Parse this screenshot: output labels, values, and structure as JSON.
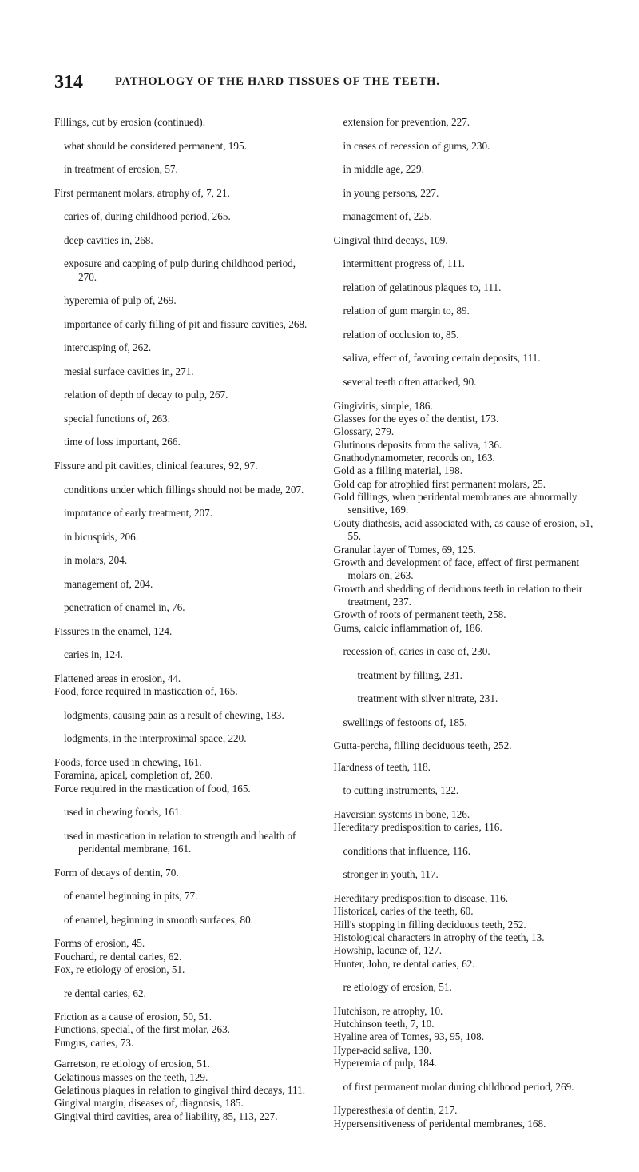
{
  "header": {
    "page_number": "314",
    "running_title": "PATHOLOGY OF THE HARD TISSUES OF THE TEETH."
  },
  "entries": [
    {
      "t": "Fillings, cut by erosion (continued).",
      "c": "entry"
    },
    {
      "t": "what should be considered permanent, 195.",
      "c": "sub1"
    },
    {
      "t": "in treatment of erosion, 57.",
      "c": "sub1"
    },
    {
      "t": "First permanent molars, atrophy of, 7, 21.",
      "c": "entry"
    },
    {
      "t": "caries of, during childhood period, 265.",
      "c": "sub1"
    },
    {
      "t": "deep cavities in, 268.",
      "c": "sub1"
    },
    {
      "t": "exposure and capping of pulp during childhood period, 270.",
      "c": "sub1"
    },
    {
      "t": "hyperemia of pulp of, 269.",
      "c": "sub1"
    },
    {
      "t": "importance of early filling of pit and fissure cavities, 268.",
      "c": "sub1"
    },
    {
      "t": "intercusping of, 262.",
      "c": "sub1"
    },
    {
      "t": "mesial surface cavities in, 271.",
      "c": "sub1"
    },
    {
      "t": "relation of depth of decay to pulp, 267.",
      "c": "sub1"
    },
    {
      "t": "special functions of, 263.",
      "c": "sub1"
    },
    {
      "t": "time of loss important, 266.",
      "c": "sub1"
    },
    {
      "t": "Fissure and pit cavities, clinical features, 92, 97.",
      "c": "entry"
    },
    {
      "t": "conditions under which fillings should not be made, 207.",
      "c": "sub1"
    },
    {
      "t": "importance of early treatment, 207.",
      "c": "sub1"
    },
    {
      "t": "in bicuspids, 206.",
      "c": "sub1"
    },
    {
      "t": "in molars, 204.",
      "c": "sub1"
    },
    {
      "t": "management of, 204.",
      "c": "sub1"
    },
    {
      "t": "penetration of enamel in, 76.",
      "c": "sub1"
    },
    {
      "t": "Fissures in the enamel, 124.",
      "c": "entry"
    },
    {
      "t": "caries in, 124.",
      "c": "sub1"
    },
    {
      "t": "Flattened areas in erosion, 44.",
      "c": "entry"
    },
    {
      "t": "Food, force required in mastication of, 165.",
      "c": "entry"
    },
    {
      "t": "lodgments, causing pain as a result of chewing, 183.",
      "c": "sub1"
    },
    {
      "t": "lodgments, in the interproximal space, 220.",
      "c": "sub1"
    },
    {
      "t": "Foods, force used in chewing, 161.",
      "c": "entry"
    },
    {
      "t": "Foramina, apical, completion of, 260.",
      "c": "entry"
    },
    {
      "t": "Force required in the mastication of food, 165.",
      "c": "entry"
    },
    {
      "t": "used in chewing foods, 161.",
      "c": "sub1"
    },
    {
      "t": "used in mastication in relation to strength and health of peridental membrane, 161.",
      "c": "sub1"
    },
    {
      "t": "Form of decays of dentin, 70.",
      "c": "entry"
    },
    {
      "t": "of enamel beginning in pits, 77.",
      "c": "sub1"
    },
    {
      "t": "of enamel, beginning in smooth surfaces, 80.",
      "c": "sub1"
    },
    {
      "t": "Forms of erosion, 45.",
      "c": "entry"
    },
    {
      "t": "Fouchard, re dental caries, 62.",
      "c": "entry"
    },
    {
      "t": "Fox, re etiology of erosion, 51.",
      "c": "entry"
    },
    {
      "t": "re dental caries, 62.",
      "c": "sub1"
    },
    {
      "t": "Friction as a cause of erosion, 50, 51.",
      "c": "entry"
    },
    {
      "t": "Functions, special, of the first molar, 263.",
      "c": "entry"
    },
    {
      "t": "Fungus, caries, 73.",
      "c": "entry"
    },
    {
      "t": "Garretson, re etiology of erosion, 51.",
      "c": "entry gap-top"
    },
    {
      "t": "Gelatinous masses on the teeth, 129.",
      "c": "entry"
    },
    {
      "t": "Gelatinous plaques in relation to gingival third decays, 111.",
      "c": "entry"
    },
    {
      "t": "Gingival margin, diseases of, diagnosis, 185.",
      "c": "entry"
    },
    {
      "t": "Gingival third cavities, area of liability, 85, 113, 227.",
      "c": "entry"
    },
    {
      "t": "extension for prevention, 227.",
      "c": "sub1"
    },
    {
      "t": "in cases of recession of gums, 230.",
      "c": "sub1"
    },
    {
      "t": "in middle age, 229.",
      "c": "sub1"
    },
    {
      "t": "in young persons, 227.",
      "c": "sub1"
    },
    {
      "t": "management of, 225.",
      "c": "sub1"
    },
    {
      "t": "Gingival third decays, 109.",
      "c": "entry"
    },
    {
      "t": "intermittent progress of, 111.",
      "c": "sub1"
    },
    {
      "t": "relation of gelatinous plaques to, 111.",
      "c": "sub1"
    },
    {
      "t": "relation of gum margin to, 89.",
      "c": "sub1"
    },
    {
      "t": "relation of occlusion to, 85.",
      "c": "sub1"
    },
    {
      "t": "saliva, effect of, favoring certain deposits, 111.",
      "c": "sub1"
    },
    {
      "t": "several teeth often attacked, 90.",
      "c": "sub1"
    },
    {
      "t": "Gingivitis, simple, 186.",
      "c": "entry"
    },
    {
      "t": "Glasses for the eyes of the dentist, 173.",
      "c": "entry"
    },
    {
      "t": "Glossary, 279.",
      "c": "entry"
    },
    {
      "t": "Glutinous deposits from the saliva, 136.",
      "c": "entry"
    },
    {
      "t": "Gnathodynamometer, records on, 163.",
      "c": "entry"
    },
    {
      "t": "Gold as a filling material, 198.",
      "c": "entry"
    },
    {
      "t": "Gold cap for atrophied first permanent molars, 25.",
      "c": "entry"
    },
    {
      "t": "Gold fillings, when peridental membranes are abnormally sensitive, 169.",
      "c": "entry"
    },
    {
      "t": "Gouty diathesis, acid associated with, as cause of erosion, 51, 55.",
      "c": "entry"
    },
    {
      "t": "Granular layer of Tomes, 69, 125.",
      "c": "entry"
    },
    {
      "t": "Growth and development of face, effect of first permanent molars on, 263.",
      "c": "entry"
    },
    {
      "t": "Growth and shedding of deciduous teeth in relation to their treatment, 237.",
      "c": "entry"
    },
    {
      "t": "Growth of roots of permanent teeth, 258.",
      "c": "entry"
    },
    {
      "t": "Gums, calcic inflammation of, 186.",
      "c": "entry"
    },
    {
      "t": "recession of, caries in case of, 230.",
      "c": "sub1"
    },
    {
      "t": "treatment by filling, 231.",
      "c": "sub2"
    },
    {
      "t": "treatment with silver nitrate, 231.",
      "c": "sub2"
    },
    {
      "t": "swellings of festoons of, 185.",
      "c": "sub1"
    },
    {
      "t": "Gutta-percha, filling deciduous teeth, 252.",
      "c": "entry"
    },
    {
      "t": "Hardness of teeth, 118.",
      "c": "entry gap-top"
    },
    {
      "t": "to cutting instruments, 122.",
      "c": "sub1"
    },
    {
      "t": "Haversian systems in bone, 126.",
      "c": "entry"
    },
    {
      "t": "Hereditary predisposition to caries, 116.",
      "c": "entry"
    },
    {
      "t": "conditions that influence, 116.",
      "c": "sub1"
    },
    {
      "t": "stronger in youth, 117.",
      "c": "sub1"
    },
    {
      "t": "Hereditary predisposition to disease, 116.",
      "c": "entry"
    },
    {
      "t": "Historical, caries of the teeth, 60.",
      "c": "entry"
    },
    {
      "t": "Hill's stopping in filling deciduous teeth, 252.",
      "c": "entry"
    },
    {
      "t": "Histological characters in atrophy of the teeth, 13.",
      "c": "entry"
    },
    {
      "t": "Howship, lacunæ of, 127.",
      "c": "entry"
    },
    {
      "t": "Hunter, John, re dental caries, 62.",
      "c": "entry"
    },
    {
      "t": "re etiology of erosion, 51.",
      "c": "sub1"
    },
    {
      "t": "Hutchison, re atrophy, 10.",
      "c": "entry"
    },
    {
      "t": "Hutchinson teeth, 7, 10.",
      "c": "entry"
    },
    {
      "t": "Hyaline area of Tomes, 93, 95, 108.",
      "c": "entry"
    },
    {
      "t": "Hyper-acid saliva, 130.",
      "c": "entry"
    },
    {
      "t": "Hyperemia of pulp, 184.",
      "c": "entry"
    },
    {
      "t": "of first permanent molar during childhood period, 269.",
      "c": "sub1"
    },
    {
      "t": "Hyperesthesia of dentin, 217.",
      "c": "entry"
    },
    {
      "t": "Hypersensitiveness of peridental membranes, 168.",
      "c": "entry"
    }
  ]
}
